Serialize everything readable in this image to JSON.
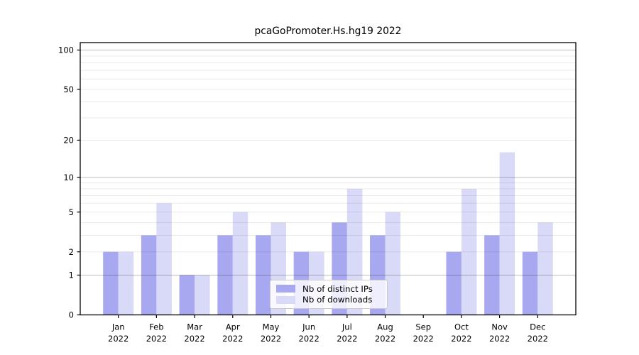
{
  "chart_data": {
    "type": "bar",
    "title": "pcaGoPromoter.Hs.hg19 2022",
    "categories": [
      "Jan 2022",
      "Feb 2022",
      "Mar 2022",
      "Apr 2022",
      "May 2022",
      "Jun 2022",
      "Jul 2022",
      "Aug 2022",
      "Sep 2022",
      "Oct 2022",
      "Nov 2022",
      "Dec 2022"
    ],
    "series": [
      {
        "name": "Nb of distinct IPs",
        "color": "#a8a8f0",
        "values": [
          2,
          3,
          1,
          3,
          3,
          2,
          4,
          3,
          0,
          2,
          3,
          2
        ]
      },
      {
        "name": "Nb of downloads",
        "color": "#d9d9f8",
        "values": [
          2,
          6,
          1,
          5,
          4,
          2,
          8,
          5,
          0,
          8,
          16,
          4
        ]
      }
    ],
    "yscale": "log10(value+1)",
    "ylim": [
      0,
      113
    ],
    "yticks": [
      0,
      1,
      2,
      5,
      10,
      20,
      50,
      100
    ],
    "major_gridlines": [
      1,
      10,
      100
    ],
    "minor_gridlines": [
      2,
      3,
      4,
      5,
      6,
      7,
      8,
      9,
      20,
      30,
      40,
      50,
      60,
      70,
      80,
      90
    ],
    "grid": "horizontal",
    "legend_position": "inside lower-center",
    "colors": {
      "axis": "#000000",
      "major_grid": "rgba(0,0,0,0.25)",
      "minor_grid": "rgba(0,0,0,0.09)"
    }
  }
}
